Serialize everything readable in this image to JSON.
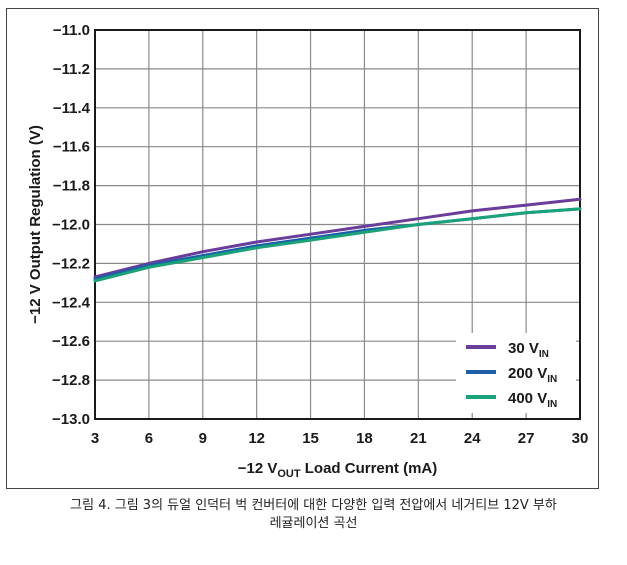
{
  "chart_data": {
    "type": "line",
    "xlabel": {
      "prefix": "−12 V",
      "sub": "OUT",
      "suffix": " Load Current (mA)"
    },
    "ylabel": "−12 V Output Regulation (V)",
    "xlim": [
      3,
      30
    ],
    "ylim": [
      -13.0,
      -11.0
    ],
    "xticks": [
      3,
      6,
      9,
      12,
      15,
      18,
      21,
      24,
      27,
      30
    ],
    "yticks": [
      -11.0,
      -11.2,
      -11.4,
      -11.6,
      -11.8,
      -12.0,
      -12.2,
      -12.4,
      -12.6,
      -12.8,
      -13.0
    ],
    "ytick_labels": [
      "−11.0",
      "−11.2",
      "−11.4",
      "−11.6",
      "−11.8",
      "−12.0",
      "−12.2",
      "−12.4",
      "−12.6",
      "−12.8",
      "−13.0"
    ],
    "grid": true,
    "legend_position": "bottom-right",
    "x": [
      3,
      6,
      9,
      12,
      15,
      18,
      21,
      24,
      27,
      30
    ],
    "series": [
      {
        "name": "30 V",
        "name_sub": "IN",
        "color": "#6a3d9a",
        "values": [
          -12.27,
          -12.2,
          -12.14,
          -12.09,
          -12.05,
          -12.01,
          -11.97,
          -11.93,
          -11.9,
          -11.87
        ]
      },
      {
        "name": "200 V",
        "name_sub": "IN",
        "color": "#1f5fa8",
        "values": [
          -12.28,
          -12.21,
          -12.16,
          -12.11,
          -12.07,
          -12.03,
          -12.0,
          -11.97,
          -11.94,
          -11.92
        ]
      },
      {
        "name": "400 V",
        "name_sub": "IN",
        "color": "#1aa37a",
        "values": [
          -12.29,
          -12.22,
          -12.17,
          -12.12,
          -12.08,
          -12.04,
          -12.0,
          -11.97,
          -11.94,
          -11.92
        ]
      }
    ]
  },
  "caption": {
    "line1": "그림 4. 그림 3의 듀얼 인덕터 벅 컨버터에 대한 다양한 입력 전압에서 네거티브 12V 부하",
    "line2": "레귤레이션 곡선"
  }
}
